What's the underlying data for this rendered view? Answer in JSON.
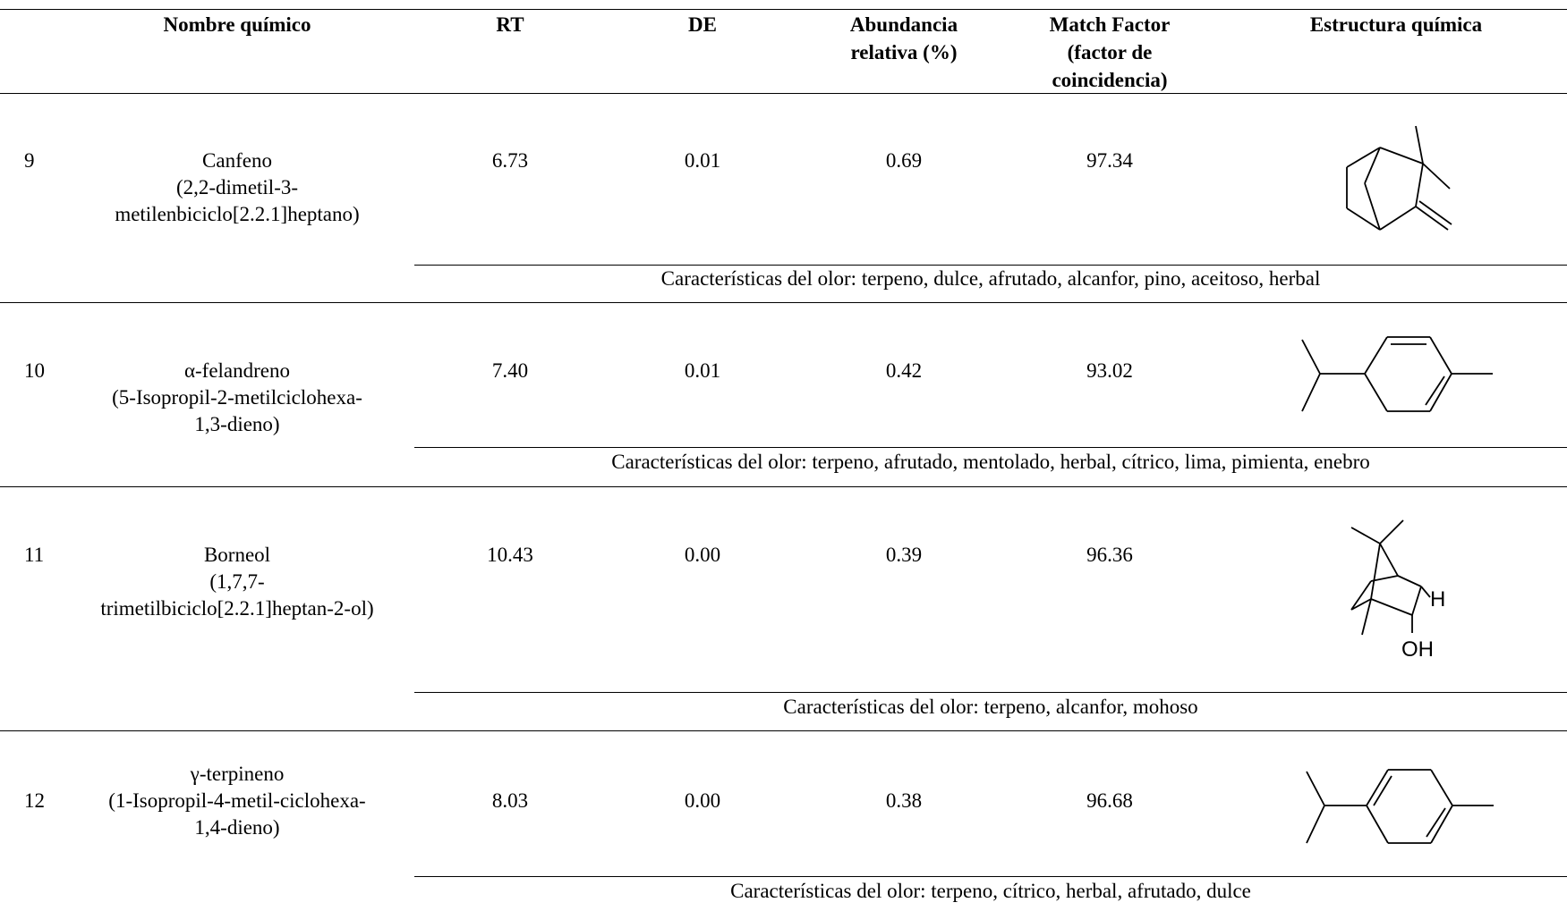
{
  "header": {
    "name": "Nombre químico",
    "rt": "RT",
    "de": "DE",
    "abundance_line1": "Abundancia",
    "abundance_line2": "relativa (%)",
    "match_line1": "Match Factor",
    "match_line2": "(factor de",
    "match_line3": "coincidencia)",
    "structure": "Estructura química"
  },
  "rows": [
    {
      "num": "9",
      "name": "Canfeno",
      "iupac_line1": "(2,2-dimetil-3-",
      "iupac_line2": "metilenbiciclo[2.2.1]heptano)",
      "iupac_line3": "",
      "rt": "6.73",
      "de": "0.01",
      "abundance": "0.69",
      "match": "97.34",
      "odor": "Características del olor: terpeno, dulce, afrutado, alcanfor, pino, aceitoso, herbal",
      "structure_icon": "camphene-structure"
    },
    {
      "num": "10",
      "name": "α-felandreno",
      "iupac_line1": "(5-Isopropil-2-metilciclohexa-",
      "iupac_line2": "1,3-dieno)",
      "iupac_line3": "",
      "rt": "7.40",
      "de": "0.01",
      "abundance": "0.42",
      "match": "93.02",
      "odor": "Características del olor: terpeno, afrutado, mentolado, herbal, cítrico, lima, pimienta, enebro",
      "structure_icon": "alpha-phellandrene-structure"
    },
    {
      "num": "11",
      "name": "Borneol",
      "iupac_line1": "(1,7,7-",
      "iupac_line2": "trimetilbiciclo[2.2.1]heptan-2-ol)",
      "iupac_line3": "",
      "rt": "10.43",
      "de": "0.00",
      "abundance": "0.39",
      "match": "96.36",
      "odor": "Características del olor: terpeno, alcanfor, mohoso",
      "structure_icon": "borneol-structure",
      "structure_label_h": "H",
      "structure_label_oh": "OH"
    },
    {
      "num": "12",
      "name": "γ-terpineno",
      "iupac_line1": "(1-Isopropil-4-metil-ciclohexa-",
      "iupac_line2": "1,4-dieno)",
      "iupac_line3": "",
      "rt": "8.03",
      "de": "0.00",
      "abundance": "0.38",
      "match": "96.68",
      "odor": "Características del olor: terpeno, cítrico, herbal, afrutado, dulce",
      "structure_icon": "gamma-terpinene-structure"
    }
  ]
}
